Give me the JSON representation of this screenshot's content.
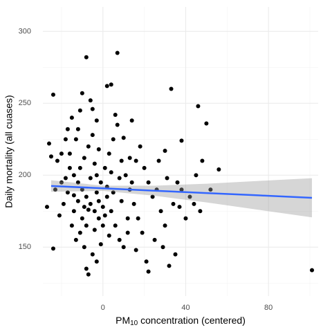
{
  "chart_data": {
    "type": "scatter",
    "x_label": {
      "text": "PM",
      "subscript": "10",
      "rest": " concentration (centered)"
    },
    "y_label": "Daily mortality (all cuases)",
    "xlim": [
      -29,
      104
    ],
    "ylim": [
      116,
      317
    ],
    "xticks": [
      0,
      40,
      80
    ],
    "yticks": [
      150,
      200,
      250,
      300
    ],
    "minor_xticks": [
      -20,
      20,
      60,
      100
    ],
    "minor_yticks": [
      125,
      175,
      225,
      275
    ],
    "grid": true,
    "series": [
      {
        "color": "#000000",
        "x": [
          -8,
          7,
          -24,
          -5,
          33,
          46,
          50,
          56,
          101,
          -24,
          -26,
          -27,
          32,
          22,
          -7,
          -8,
          2,
          4,
          30,
          38,
          -3,
          -10,
          -6,
          -15,
          -12,
          -18,
          -20,
          -22,
          -16,
          -14,
          -12,
          -10,
          -8,
          -6,
          -4,
          -2,
          0,
          -11,
          -13,
          -9,
          -5,
          -3,
          -17,
          -19,
          -21,
          -23,
          -15,
          -14,
          -11,
          -9,
          -7,
          -5,
          -3,
          -1,
          1,
          3,
          5,
          7,
          9,
          11,
          13,
          15,
          17,
          19,
          2,
          4,
          6,
          8,
          10,
          12,
          14,
          16,
          18,
          20,
          22,
          24,
          26,
          28,
          30,
          34,
          36,
          40,
          42,
          45,
          44,
          47,
          48,
          35,
          25,
          21,
          -16,
          -13,
          -10,
          -8,
          -6,
          -4,
          -2,
          0,
          2,
          4,
          -12,
          -7,
          -3,
          1,
          5,
          8,
          -18,
          -20,
          -14,
          -9,
          3,
          -1,
          9,
          13,
          27,
          31,
          38,
          52,
          -11,
          6,
          14,
          -25,
          -17,
          10,
          -4,
          -2,
          12,
          16,
          29,
          37
        ],
        "y": [
          282,
          285,
          256,
          246,
          260,
          248,
          236,
          204,
          134,
          149,
          222,
          178,
          137,
          133,
          131,
          135,
          262,
          263,
          217,
          224,
          238,
          257,
          252,
          240,
          232,
          225,
          215,
          210,
          205,
          200,
          195,
          190,
          185,
          180,
          175,
          170,
          165,
          160,
          155,
          150,
          145,
          140,
          188,
          180,
          172,
          190,
          165,
          175,
          205,
          212,
          220,
          228,
          200,
          195,
          205,
          215,
          225,
          235,
          210,
          200,
          190,
          180,
          170,
          160,
          185,
          175,
          165,
          155,
          150,
          170,
          195,
          210,
          220,
          205,
          195,
          185,
          190,
          175,
          165,
          180,
          195,
          170,
          185,
          200,
          180,
          175,
          210,
          145,
          155,
          140,
          215,
          225,
          170,
          165,
          198,
          208,
          182,
          178,
          192,
          202,
          182,
          176,
          188,
          172,
          188,
          198,
          198,
          195,
          186,
          178,
          158,
          152,
          182,
          212,
          210,
          198,
          190,
          190,
          245,
          242,
          238,
          213,
          232,
          226,
          162,
          218,
          160,
          148,
          150,
          178
        ]
      }
    ],
    "fit": {
      "color": "#3366ff",
      "band_color": "#999999",
      "x": [
        -25,
        0,
        25,
        50,
        75,
        101
      ],
      "y": [
        192.5,
        190.9,
        189.2,
        187.6,
        186.0,
        184.3
      ],
      "lower": [
        188.5,
        189.1,
        185.7,
        181.1,
        176.0,
        170.7
      ],
      "upper": [
        196.5,
        192.7,
        192.7,
        194.1,
        196.0,
        197.9
      ]
    }
  }
}
